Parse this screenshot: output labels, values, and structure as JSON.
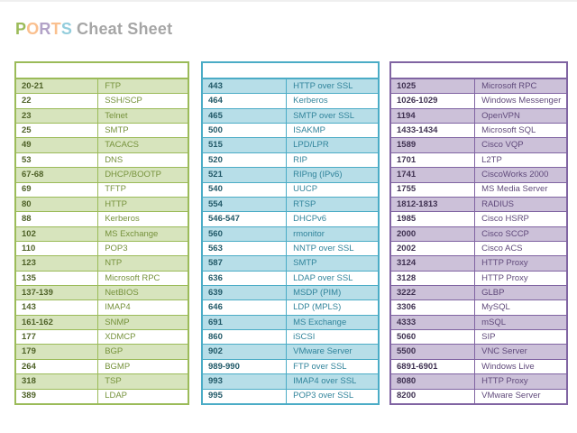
{
  "title": {
    "word_letters": [
      {
        "char": "P",
        "color": "#9BBB59"
      },
      {
        "char": "O",
        "color": "#FAC08F"
      },
      {
        "char": "R",
        "color": "#B2A2C7"
      },
      {
        "char": "T",
        "color": "#FAC08F"
      },
      {
        "char": "S",
        "color": "#93CDDC"
      }
    ],
    "rest": "Cheat Sheet",
    "rest_color": "#A6A6A6"
  },
  "tables": [
    {
      "name": "ports-table-green",
      "colors": {
        "border": "#9BBB59",
        "shade": "#D7E4BD",
        "port_text": "#4F6228",
        "service_text": "#76923C"
      },
      "rows": [
        {
          "port": "20-21",
          "service": "FTP"
        },
        {
          "port": "22",
          "service": "SSH/SCP"
        },
        {
          "port": "23",
          "service": "Telnet"
        },
        {
          "port": "25",
          "service": "SMTP"
        },
        {
          "port": "49",
          "service": "TACACS"
        },
        {
          "port": "53",
          "service": "DNS"
        },
        {
          "port": "67-68",
          "service": "DHCP/BOOTP"
        },
        {
          "port": "69",
          "service": "TFTP"
        },
        {
          "port": "80",
          "service": "HTTP"
        },
        {
          "port": "88",
          "service": "Kerberos"
        },
        {
          "port": "102",
          "service": "MS Exchange"
        },
        {
          "port": "110",
          "service": "POP3"
        },
        {
          "port": "123",
          "service": "NTP"
        },
        {
          "port": "135",
          "service": "Microsoft RPC"
        },
        {
          "port": "137-139",
          "service": "NetBIOS"
        },
        {
          "port": "143",
          "service": "IMAP4"
        },
        {
          "port": "161-162",
          "service": "SNMP"
        },
        {
          "port": "177",
          "service": "XDMCP"
        },
        {
          "port": "179",
          "service": "BGP"
        },
        {
          "port": "264",
          "service": "BGMP"
        },
        {
          "port": "318",
          "service": "TSP"
        },
        {
          "port": "389",
          "service": "LDAP"
        }
      ]
    },
    {
      "name": "ports-table-blue",
      "colors": {
        "border": "#4BACC6",
        "shade": "#B7DEE8",
        "port_text": "#215968",
        "service_text": "#31849B"
      },
      "rows": [
        {
          "port": "443",
          "service": "HTTP over SSL"
        },
        {
          "port": "464",
          "service": "Kerberos"
        },
        {
          "port": "465",
          "service": "SMTP over SSL"
        },
        {
          "port": "500",
          "service": "ISAKMP"
        },
        {
          "port": "515",
          "service": "LPD/LPR"
        },
        {
          "port": "520",
          "service": "RIP"
        },
        {
          "port": "521",
          "service": "RIPng (IPv6)"
        },
        {
          "port": "540",
          "service": "UUCP"
        },
        {
          "port": "554",
          "service": "RTSP"
        },
        {
          "port": "546-547",
          "service": "DHCPv6"
        },
        {
          "port": "560",
          "service": "rmonitor"
        },
        {
          "port": "563",
          "service": "NNTP over SSL"
        },
        {
          "port": "587",
          "service": "SMTP"
        },
        {
          "port": "636",
          "service": "LDAP over SSL"
        },
        {
          "port": "639",
          "service": "MSDP (PIM)"
        },
        {
          "port": "646",
          "service": "LDP (MPLS)"
        },
        {
          "port": "691",
          "service": "MS Exchange"
        },
        {
          "port": "860",
          "service": "iSCSI"
        },
        {
          "port": "902",
          "service": "VMware Server"
        },
        {
          "port": "989-990",
          "service": "FTP over SSL"
        },
        {
          "port": "993",
          "service": "IMAP4 over SSL"
        },
        {
          "port": "995",
          "service": "POP3 over SSL"
        }
      ]
    },
    {
      "name": "ports-table-purple",
      "colors": {
        "border": "#8064A2",
        "shade": "#CCC1D9",
        "port_text": "#3F3151",
        "service_text": "#604A7B"
      },
      "rows": [
        {
          "port": "1025",
          "service": "Microsoft RPC"
        },
        {
          "port": "1026-1029",
          "service": "Windows Messenger"
        },
        {
          "port": "1194",
          "service": "OpenVPN"
        },
        {
          "port": "1433-1434",
          "service": "Microsoft SQL"
        },
        {
          "port": "1589",
          "service": "Cisco VQP"
        },
        {
          "port": "1701",
          "service": "L2TP"
        },
        {
          "port": "1741",
          "service": "CiscoWorks 2000"
        },
        {
          "port": "1755",
          "service": "MS Media Server"
        },
        {
          "port": "1812-1813",
          "service": "RADIUS"
        },
        {
          "port": "1985",
          "service": "Cisco HSRP"
        },
        {
          "port": "2000",
          "service": "Cisco SCCP"
        },
        {
          "port": "2002",
          "service": "Cisco ACS"
        },
        {
          "port": "3124",
          "service": "HTTP Proxy"
        },
        {
          "port": "3128",
          "service": "HTTP Proxy"
        },
        {
          "port": "3222",
          "service": "GLBP"
        },
        {
          "port": "3306",
          "service": "MySQL"
        },
        {
          "port": "4333",
          "service": "mSQL"
        },
        {
          "port": "5060",
          "service": "SIP"
        },
        {
          "port": "5500",
          "service": "VNC Server"
        },
        {
          "port": "6891-6901",
          "service": "Windows Live"
        },
        {
          "port": "8080",
          "service": "HTTP Proxy"
        },
        {
          "port": "8200",
          "service": "VMware Server"
        }
      ]
    }
  ]
}
